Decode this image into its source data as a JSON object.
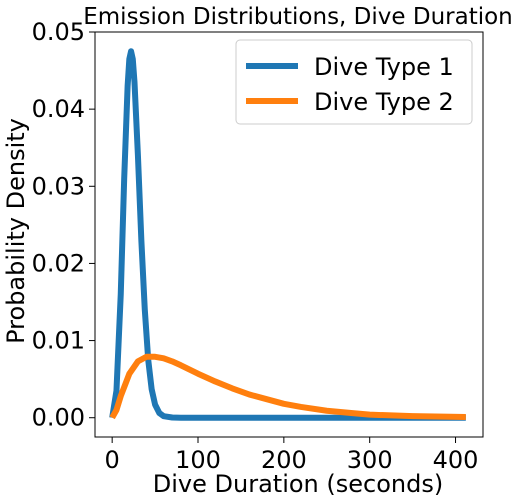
{
  "chart_data": {
    "type": "line",
    "title": "Emission Distributions, Dive Duration",
    "xlabel": "Dive Duration (seconds)",
    "ylabel": "Probability Density",
    "xlim": [
      -20,
      432
    ],
    "ylim": [
      -0.0025,
      0.05
    ],
    "xticks": [
      0,
      100,
      200,
      300,
      400
    ],
    "xtick_labels": [
      "0",
      "100",
      "200",
      "300",
      "400"
    ],
    "yticks": [
      0.0,
      0.01,
      0.02,
      0.03,
      0.04,
      0.05
    ],
    "ytick_labels": [
      "0.00",
      "0.01",
      "0.02",
      "0.03",
      "0.04",
      "0.05"
    ],
    "grid": false,
    "legend_position": "top-right",
    "series": [
      {
        "name": "Dive Type 1",
        "color": "#1f77b4",
        "x": [
          0,
          5,
          10,
          14,
          18,
          20,
          22,
          24,
          26,
          30,
          34,
          38,
          42,
          46,
          50,
          55,
          60,
          70,
          80,
          100,
          150,
          200,
          300,
          412
        ],
        "y": [
          0.0,
          0.0035,
          0.016,
          0.031,
          0.043,
          0.0465,
          0.0475,
          0.0465,
          0.0435,
          0.034,
          0.023,
          0.014,
          0.0075,
          0.0037,
          0.0017,
          0.0006,
          0.0002,
          3e-05,
          0.0,
          0.0,
          0.0,
          0.0,
          0.0,
          0.0
        ]
      },
      {
        "name": "Dive Type 2",
        "color": "#ff7f0e",
        "x": [
          0,
          5,
          10,
          20,
          30,
          40,
          50,
          60,
          70,
          80,
          100,
          120,
          140,
          160,
          180,
          200,
          220,
          250,
          280,
          300,
          350,
          412
        ],
        "y": [
          0.0,
          0.001,
          0.0028,
          0.0057,
          0.0073,
          0.0079,
          0.0079,
          0.0077,
          0.0073,
          0.0068,
          0.0057,
          0.0047,
          0.0038,
          0.003,
          0.0024,
          0.0018,
          0.0014,
          0.0009,
          0.0006,
          0.0004,
          0.0002,
          0.0001
        ]
      }
    ]
  }
}
